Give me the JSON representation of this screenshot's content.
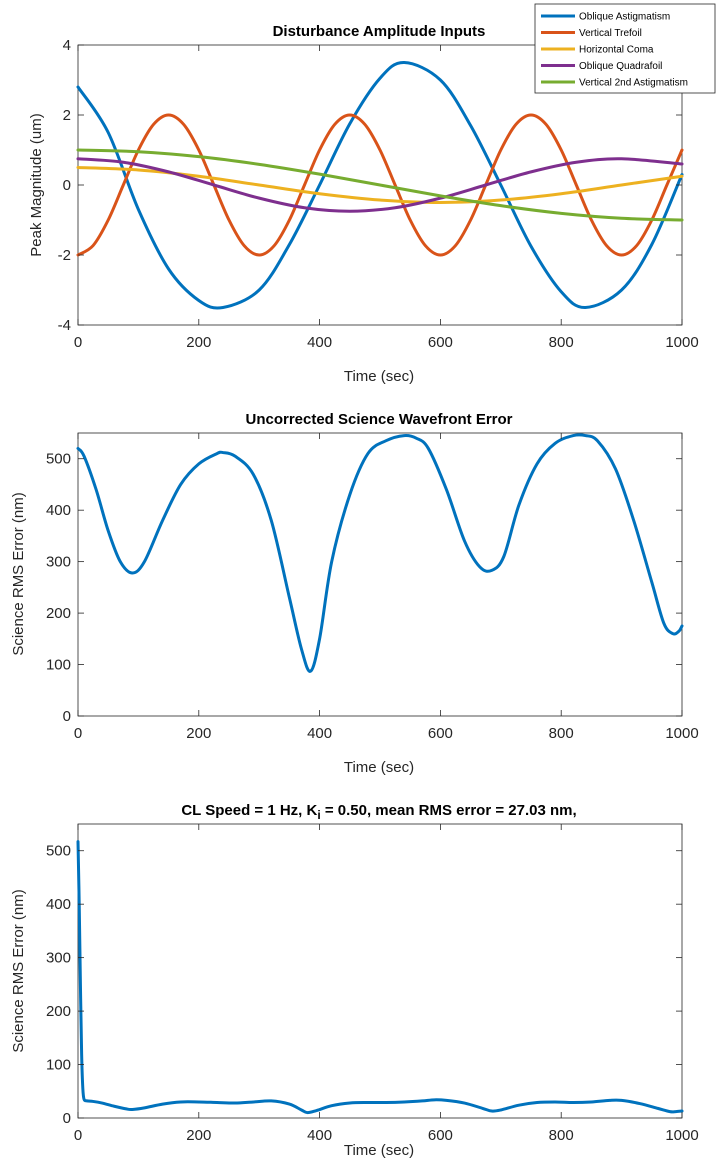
{
  "chart_data": [
    {
      "type": "line",
      "title": "Disturbance Amplitude Inputs",
      "xlabel": "Time (sec)",
      "ylabel": "Peak Magnitude (um)",
      "xlim": [
        0,
        1000
      ],
      "ylim": [
        -4,
        4
      ],
      "xticks": [
        0,
        200,
        400,
        600,
        800,
        1000
      ],
      "yticks": [
        -4,
        -2,
        0,
        2,
        4
      ],
      "legend_position": "top-right",
      "grid": false,
      "series": [
        {
          "name": "Oblique Astigmatism",
          "color": "#0072BD",
          "x": [
            0,
            50,
            100,
            150,
            200,
            240,
            300,
            350,
            400,
            450,
            500,
            540,
            600,
            650,
            700,
            750,
            800,
            840,
            900,
            950,
            1000
          ],
          "y": [
            2.8,
            1.5,
            -0.7,
            -2.4,
            -3.3,
            -3.5,
            -3.0,
            -1.7,
            0.0,
            1.75,
            3.05,
            3.5,
            3.0,
            1.7,
            0.0,
            -1.75,
            -3.05,
            -3.5,
            -3.0,
            -1.7,
            0.3
          ]
        },
        {
          "name": "Vertical Trefoil",
          "color": "#D95319",
          "x": [
            0,
            25,
            50,
            75,
            100,
            125,
            150,
            175,
            200,
            225,
            250,
            275,
            300,
            325,
            350,
            375,
            400,
            425,
            450,
            475,
            500,
            525,
            550,
            575,
            600,
            625,
            650,
            675,
            700,
            725,
            750,
            775,
            800,
            825,
            850,
            875,
            900,
            925,
            950,
            975,
            1000
          ],
          "y": [
            -2.0,
            -1.73,
            -1.0,
            0.0,
            1.0,
            1.73,
            2.0,
            1.73,
            1.0,
            0.0,
            -1.0,
            -1.73,
            -2.0,
            -1.73,
            -1.0,
            0.0,
            1.0,
            1.73,
            2.0,
            1.73,
            1.0,
            0.0,
            -1.0,
            -1.73,
            -2.0,
            -1.73,
            -1.0,
            0.0,
            1.0,
            1.73,
            2.0,
            1.73,
            1.0,
            0.0,
            -1.0,
            -1.73,
            -2.0,
            -1.73,
            -1.0,
            0.0,
            1.0
          ]
        },
        {
          "name": "Horizontal Coma",
          "color": "#EDB120",
          "x": [
            0,
            100,
            200,
            300,
            400,
            500,
            600,
            700,
            800,
            900,
            1000
          ],
          "y": [
            0.5,
            0.43,
            0.25,
            0.0,
            -0.25,
            -0.43,
            -0.5,
            -0.43,
            -0.25,
            0.0,
            0.25
          ]
        },
        {
          "name": "Oblique Quadrafoil",
          "color": "#7E2F8E",
          "x": [
            0,
            75,
            150,
            225,
            300,
            375,
            450,
            525,
            600,
            675,
            750,
            825,
            900,
            1000
          ],
          "y": [
            0.75,
            0.65,
            0.375,
            0.0,
            -0.375,
            -0.65,
            -0.75,
            -0.65,
            -0.375,
            0.0,
            0.375,
            0.65,
            0.75,
            0.6
          ]
        },
        {
          "name": "Vertical 2nd Astigmatism",
          "color": "#77AC30",
          "x": [
            0,
            100,
            200,
            300,
            400,
            500,
            600,
            700,
            800,
            900,
            1000
          ],
          "y": [
            1.0,
            0.95,
            0.81,
            0.59,
            0.31,
            0.0,
            -0.31,
            -0.59,
            -0.81,
            -0.95,
            -1.0
          ]
        }
      ]
    },
    {
      "type": "line",
      "title": "Uncorrected Science Wavefront Error",
      "xlabel": "Time (sec)",
      "ylabel": "Science RMS Error (nm)",
      "xlim": [
        0,
        1000
      ],
      "ylim": [
        0,
        550
      ],
      "xticks": [
        0,
        200,
        400,
        600,
        800,
        1000
      ],
      "yticks": [
        0,
        100,
        200,
        300,
        400,
        500
      ],
      "grid": false,
      "series": [
        {
          "color": "#0072BD",
          "x": [
            0,
            10,
            30,
            50,
            70,
            90,
            110,
            140,
            170,
            200,
            230,
            240,
            260,
            290,
            320,
            350,
            370,
            385,
            400,
            420,
            450,
            480,
            510,
            540,
            560,
            580,
            610,
            640,
            665,
            685,
            705,
            730,
            760,
            790,
            820,
            840,
            860,
            890,
            920,
            950,
            970,
            985,
            995,
            1000
          ],
          "y": [
            520,
            505,
            440,
            360,
            300,
            278,
            300,
            380,
            450,
            490,
            510,
            512,
            505,
            470,
            380,
            230,
            130,
            87,
            150,
            300,
            430,
            510,
            535,
            545,
            540,
            520,
            440,
            340,
            290,
            283,
            310,
            410,
            490,
            530,
            545,
            545,
            535,
            480,
            380,
            260,
            180,
            160,
            165,
            175
          ]
        }
      ]
    },
    {
      "type": "line",
      "title_parts": {
        "prefix": "CL Speed = 1 Hz, K",
        "subscript": "i",
        "suffix": " = 0.50, mean RMS error = 27.03 nm,"
      },
      "xlabel": "Time (sec)",
      "ylabel": "Science RMS Error (nm)",
      "xlim": [
        0,
        1000
      ],
      "ylim": [
        0,
        550
      ],
      "xticks": [
        0,
        200,
        400,
        600,
        800,
        1000
      ],
      "yticks": [
        0,
        100,
        200,
        300,
        400,
        500
      ],
      "grid": false,
      "series": [
        {
          "color": "#0072BD",
          "x": [
            0,
            2,
            4,
            6,
            8,
            10,
            15,
            25,
            40,
            60,
            80,
            90,
            110,
            140,
            170,
            200,
            230,
            260,
            290,
            320,
            350,
            370,
            380,
            395,
            420,
            450,
            480,
            510,
            540,
            570,
            590,
            610,
            640,
            670,
            685,
            700,
            730,
            760,
            790,
            820,
            850,
            880,
            900,
            930,
            960,
            980,
            990,
            1000
          ],
          "y": [
            517,
            400,
            250,
            120,
            55,
            35,
            32,
            31,
            28,
            22,
            17,
            16,
            19,
            26,
            30,
            30,
            29,
            28,
            30,
            32,
            26,
            15,
            10,
            14,
            23,
            28,
            29,
            29,
            30,
            32,
            34,
            33,
            28,
            18,
            13,
            15,
            24,
            29,
            30,
            29,
            30,
            33,
            33,
            27,
            18,
            12,
            12,
            13
          ]
        }
      ]
    }
  ]
}
